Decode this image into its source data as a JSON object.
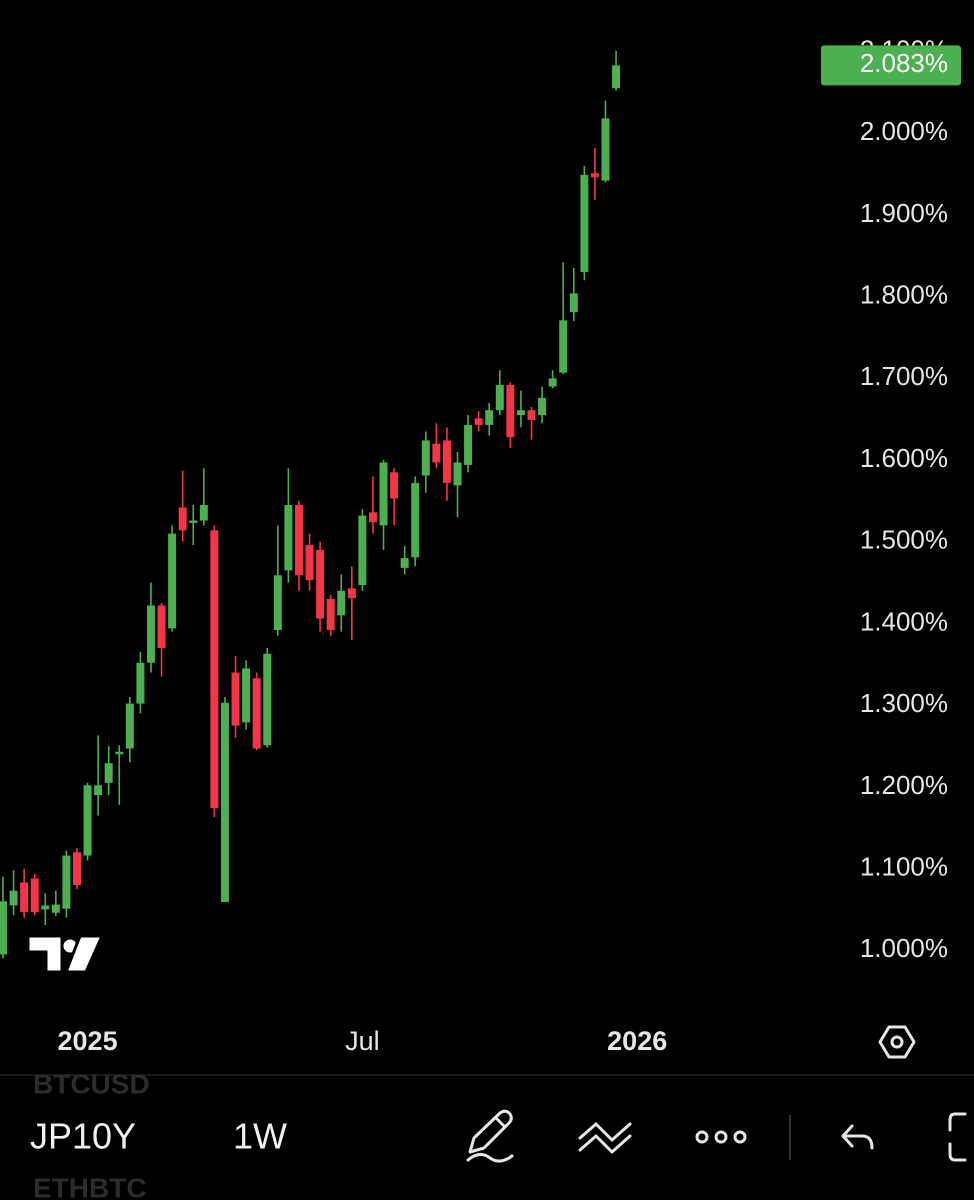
{
  "chart_data": {
    "type": "candlestick",
    "categories": [
      null,
      null,
      null,
      null,
      null,
      null,
      null,
      null,
      "2025",
      null,
      null,
      null,
      null,
      null,
      null,
      null,
      null,
      null,
      null,
      null,
      null,
      null,
      null,
      null,
      null,
      null,
      null,
      null,
      null,
      null,
      null,
      null,
      null,
      null,
      "Jul",
      null,
      null,
      null,
      null,
      null,
      null,
      null,
      null,
      null,
      null,
      null,
      null,
      null,
      null,
      null,
      null,
      null,
      null,
      null,
      null,
      null,
      null,
      null,
      null,
      null,
      "2026"
    ],
    "open": [
      0.995,
      1.055,
      1.083,
      1.088,
      1.05,
      1.046,
      1.051,
      1.12,
      1.116,
      1.19,
      1.205,
      1.24,
      1.247,
      1.302,
      1.352,
      1.422,
      1.394,
      1.542,
      1.523,
      1.526,
      1.514,
      1.059,
      1.34,
      1.279,
      1.333,
      1.251,
      1.392,
      1.465,
      1.545,
      1.496,
      1.49,
      1.43,
      1.41,
      1.443,
      1.447,
      1.536,
      1.52,
      1.585,
      1.468,
      1.481,
      1.581,
      1.62,
      1.624,
      1.569,
      1.594,
      1.651,
      1.643,
      1.661,
      1.692,
      1.655,
      1.661,
      1.655,
      1.69,
      1.707,
      1.781,
      1.83,
      1.951,
      1.942,
      2.055,
      null,
      null
    ],
    "high": [
      1.09,
      1.098,
      1.1,
      1.094,
      1.07,
      1.073,
      1.122,
      1.125,
      1.205,
      1.263,
      1.25,
      1.251,
      1.31,
      1.365,
      1.45,
      1.425,
      1.52,
      1.587,
      1.545,
      1.59,
      1.52,
      1.31,
      1.36,
      1.355,
      1.34,
      1.37,
      1.52,
      1.59,
      1.55,
      1.51,
      1.5,
      1.435,
      1.46,
      1.47,
      1.54,
      1.58,
      1.6,
      1.59,
      1.495,
      1.58,
      1.635,
      1.645,
      1.64,
      1.61,
      1.655,
      1.66,
      1.67,
      1.71,
      1.695,
      1.685,
      1.665,
      1.69,
      1.71,
      1.842,
      1.835,
      1.96,
      1.982,
      2.04,
      2.101,
      null,
      null
    ],
    "low": [
      0.99,
      1.043,
      1.04,
      1.043,
      1.031,
      1.042,
      1.04,
      1.075,
      1.11,
      1.165,
      1.19,
      1.178,
      1.23,
      1.29,
      1.34,
      1.335,
      1.39,
      1.5,
      1.496,
      1.52,
      1.163,
      1.059,
      1.26,
      1.27,
      1.245,
      1.248,
      1.385,
      1.45,
      1.44,
      1.44,
      1.39,
      1.385,
      1.39,
      1.38,
      1.44,
      1.51,
      1.49,
      1.52,
      1.46,
      1.47,
      1.56,
      1.59,
      1.55,
      1.53,
      1.585,
      1.635,
      1.63,
      1.655,
      1.615,
      1.64,
      1.625,
      1.645,
      1.688,
      1.705,
      1.77,
      1.82,
      1.918,
      1.94,
      2.052,
      null,
      null
    ],
    "close": [
      1.06,
      1.073,
      1.047,
      1.047,
      1.055,
      1.056,
      1.116,
      1.08,
      1.202,
      1.202,
      1.229,
      1.243,
      1.302,
      1.352,
      1.422,
      1.37,
      1.51,
      1.514,
      1.526,
      1.545,
      1.174,
      1.303,
      1.275,
      1.345,
      1.247,
      1.363,
      1.459,
      1.545,
      1.459,
      1.453,
      1.406,
      1.392,
      1.44,
      1.431,
      1.532,
      1.524,
      1.597,
      1.553,
      1.48,
      1.572,
      1.624,
      1.597,
      1.572,
      1.597,
      1.643,
      1.643,
      1.661,
      1.692,
      1.628,
      1.661,
      1.649,
      1.676,
      1.7,
      1.771,
      1.804,
      1.949,
      1.946,
      2.018,
      2.083,
      null,
      null
    ],
    "up_color": "#4caf50",
    "down_color": "#f23645",
    "ylim": [
      0.927,
      2.163
    ],
    "yticks": [
      {
        "value": 1.0,
        "label": "1.000%"
      },
      {
        "value": 1.1,
        "label": "1.100%"
      },
      {
        "value": 1.2,
        "label": "1.200%"
      },
      {
        "value": 1.3,
        "label": "1.300%"
      },
      {
        "value": 1.4,
        "label": "1.400%"
      },
      {
        "value": 1.5,
        "label": "1.500%"
      },
      {
        "value": 1.6,
        "label": "1.600%"
      },
      {
        "value": 1.7,
        "label": "1.700%"
      },
      {
        "value": 1.8,
        "label": "1.800%"
      },
      {
        "value": 1.9,
        "label": "1.900%"
      },
      {
        "value": 2.0,
        "label": "2.000%"
      },
      {
        "value": 2.1,
        "label": "2.100%"
      }
    ],
    "last_label": "2.083%",
    "grid": false
  },
  "toolbar": {
    "faded_above": "BTCUSD",
    "symbol": "JP10Y",
    "interval": "1W",
    "faded_below": "ETHBTC"
  }
}
